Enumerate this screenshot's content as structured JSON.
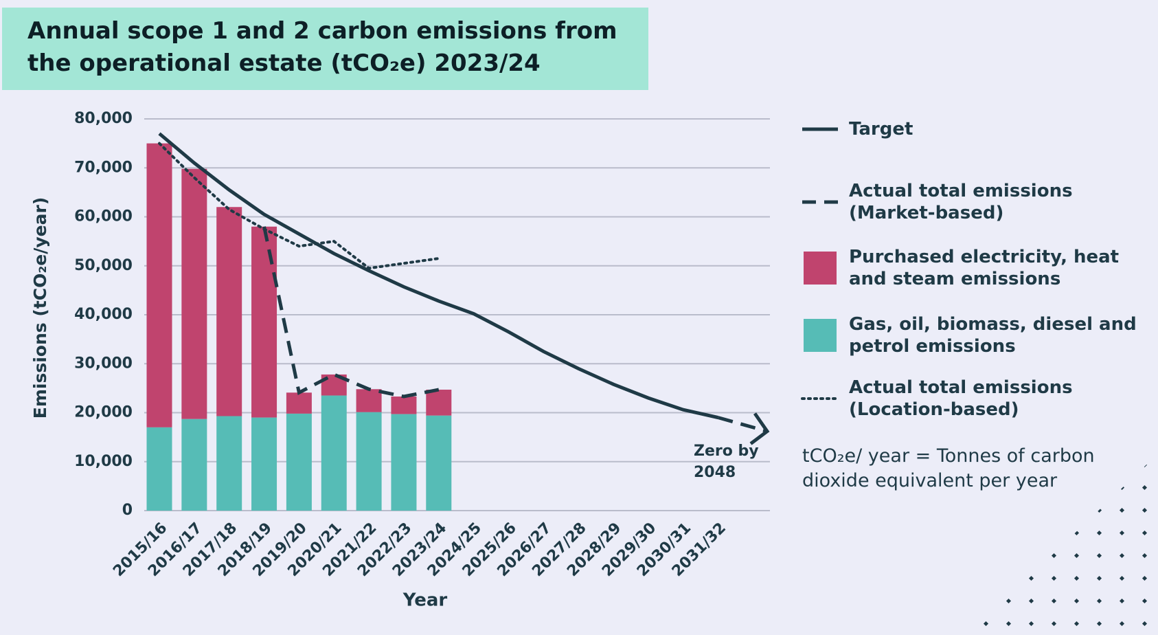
{
  "chart_data": {
    "type": "bar",
    "title": "Annual scope 1 and 2 carbon emissions from the operational estate (tCO₂e) 2023/24",
    "y_label": "Emissions (tCO₂e/year)",
    "x_label": "Year",
    "categories": [
      "2015/16",
      "2016/17",
      "2017/18",
      "2018/19",
      "2019/20",
      "2020/21",
      "2021/22",
      "2022/23",
      "2023/24",
      "2024/25",
      "2025/26",
      "2026/27",
      "2027/28",
      "2028/29",
      "2029/30",
      "2030/31",
      "2031/32"
    ],
    "ylim": [
      0,
      80000
    ],
    "yticks": [
      {
        "value": 0,
        "label": "0"
      },
      {
        "value": 10000,
        "label": "10,000"
      },
      {
        "value": 20000,
        "label": "20,000"
      },
      {
        "value": 30000,
        "label": "30,000"
      },
      {
        "value": 40000,
        "label": "40,000"
      },
      {
        "value": 50000,
        "label": "50,000"
      },
      {
        "value": 60000,
        "label": "60,000"
      },
      {
        "value": 70000,
        "label": "70,000"
      },
      {
        "value": 80000,
        "label": "80,000"
      }
    ],
    "grid": true,
    "series": [
      {
        "name": "Target",
        "kind": "line",
        "style": "solid",
        "color": "#1f3a46",
        "values": [
          77000,
          71000,
          65500,
          60500,
          56500,
          52500,
          49000,
          45700,
          42800,
          40200,
          36500,
          32500,
          29000,
          25800,
          23000,
          20600,
          19000
        ]
      },
      {
        "name": "Actual total emissions (Market-based)",
        "kind": "line",
        "style": "dashed",
        "color": "#1f3a46",
        "values": [
          null,
          null,
          null,
          58000,
          24100,
          27800,
          24800,
          23300,
          24700,
          null,
          null,
          null,
          null,
          null,
          null,
          null,
          null
        ]
      },
      {
        "name": "Purchased electricity, heat and steam emissions",
        "kind": "bar",
        "stack_on": 3,
        "color": "#c0446e",
        "values": [
          58000,
          51100,
          42700,
          39000,
          4300,
          4300,
          4700,
          3600,
          5300,
          null,
          null,
          null,
          null,
          null,
          null,
          null,
          null
        ]
      },
      {
        "name": "Gas, oil, biomass, diesel and petrol emissions",
        "kind": "bar",
        "color": "#56bcb6",
        "values": [
          17000,
          18700,
          19300,
          19000,
          19800,
          23500,
          20100,
          19700,
          19400,
          null,
          null,
          null,
          null,
          null,
          null,
          null,
          null
        ]
      },
      {
        "name": "Actual total emissions (Location-based)",
        "kind": "line",
        "style": "dotted",
        "color": "#1f3a46",
        "values": [
          75000,
          68000,
          61500,
          57500,
          54000,
          55000,
          49500,
          50500,
          51500,
          null,
          null,
          null,
          null,
          null,
          null,
          null,
          null
        ]
      }
    ],
    "annotation": [
      "Zero by",
      "2048"
    ],
    "note": "tCO₂e/ year = Tonnes of carbon dioxide equivalent per year"
  }
}
